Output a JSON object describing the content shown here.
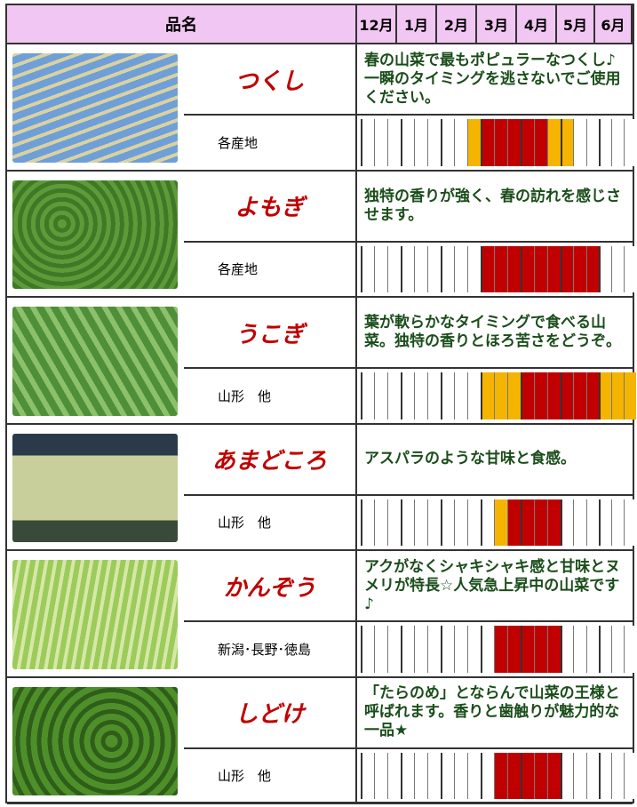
{
  "header": {
    "name_col": "品名",
    "months": [
      "12月",
      "1月",
      "2月",
      "3月",
      "4月",
      "5月",
      "6月"
    ]
  },
  "items": [
    {
      "name": "つくし",
      "description": "春の山菜で最もポピュラーなつくし♪一瞬のタイミングを逃さないでご使用ください。",
      "region": "各産地",
      "season": [
        "#fff",
        "#fff",
        "#fff",
        "#fff",
        "#fff",
        "#fff",
        "#fff",
        "#fff",
        "#f5b400",
        "#c00000",
        "#c00000",
        "#c00000",
        "#c00000",
        "#c00000",
        "#f5b400",
        "#f5b400",
        "#fff",
        "#fff",
        "#fff",
        "#fff",
        "#fff"
      ]
    },
    {
      "name": "よもぎ",
      "description": "独特の香りが強く、春の訪れを感じさせます。",
      "region": "各産地",
      "season": [
        "#fff",
        "#fff",
        "#fff",
        "#fff",
        "#fff",
        "#fff",
        "#fff",
        "#fff",
        "#fff",
        "#c00000",
        "#c00000",
        "#c00000",
        "#c00000",
        "#c00000",
        "#c00000",
        "#c00000",
        "#c00000",
        "#c00000",
        "#fff",
        "#fff",
        "#fff"
      ]
    },
    {
      "name": "うこぎ",
      "description": "葉が軟らかなタイミングで食べる山菜。独特の香りとほろ苦さをどうぞ。",
      "region": "山形　他",
      "season": [
        "#fff",
        "#fff",
        "#fff",
        "#fff",
        "#fff",
        "#fff",
        "#fff",
        "#fff",
        "#fff",
        "#f5b400",
        "#f5b400",
        "#f5b400",
        "#c00000",
        "#c00000",
        "#c00000",
        "#c00000",
        "#c00000",
        "#c00000",
        "#f5b400",
        "#f5b400",
        "#f5b400"
      ]
    },
    {
      "name": "あまどころ",
      "description": "アスパラのような甘味と食感。",
      "region": "山形　他",
      "season": [
        "#fff",
        "#fff",
        "#fff",
        "#fff",
        "#fff",
        "#fff",
        "#fff",
        "#fff",
        "#fff",
        "#fff",
        "#f5b400",
        "#c00000",
        "#c00000",
        "#c00000",
        "#c00000",
        "#fff",
        "#fff",
        "#fff",
        "#fff",
        "#fff",
        "#fff"
      ]
    },
    {
      "name": "かんぞう",
      "description": "アクがなくシャキシャキ感と甘味とヌメリが特長☆人気急上昇中の山菜です♪",
      "region": "新潟･長野･徳島",
      "season": [
        "#fff",
        "#fff",
        "#fff",
        "#fff",
        "#fff",
        "#fff",
        "#fff",
        "#fff",
        "#fff",
        "#fff",
        "#c00000",
        "#c00000",
        "#c00000",
        "#c00000",
        "#c00000",
        "#fff",
        "#fff",
        "#fff",
        "#fff",
        "#fff",
        "#fff"
      ]
    },
    {
      "name": "しどけ",
      "description": "「たらのめ」とならんで山菜の王様と呼ばれます。香りと歯触りが魅力的な一品★",
      "region": "山形　他",
      "season": [
        "#fff",
        "#fff",
        "#fff",
        "#fff",
        "#fff",
        "#fff",
        "#fff",
        "#fff",
        "#fff",
        "#fff",
        "#c00000",
        "#c00000",
        "#c00000",
        "#c00000",
        "#c00000",
        "#fff",
        "#fff",
        "#fff",
        "#fff",
        "#fff",
        "#fff"
      ]
    }
  ]
}
